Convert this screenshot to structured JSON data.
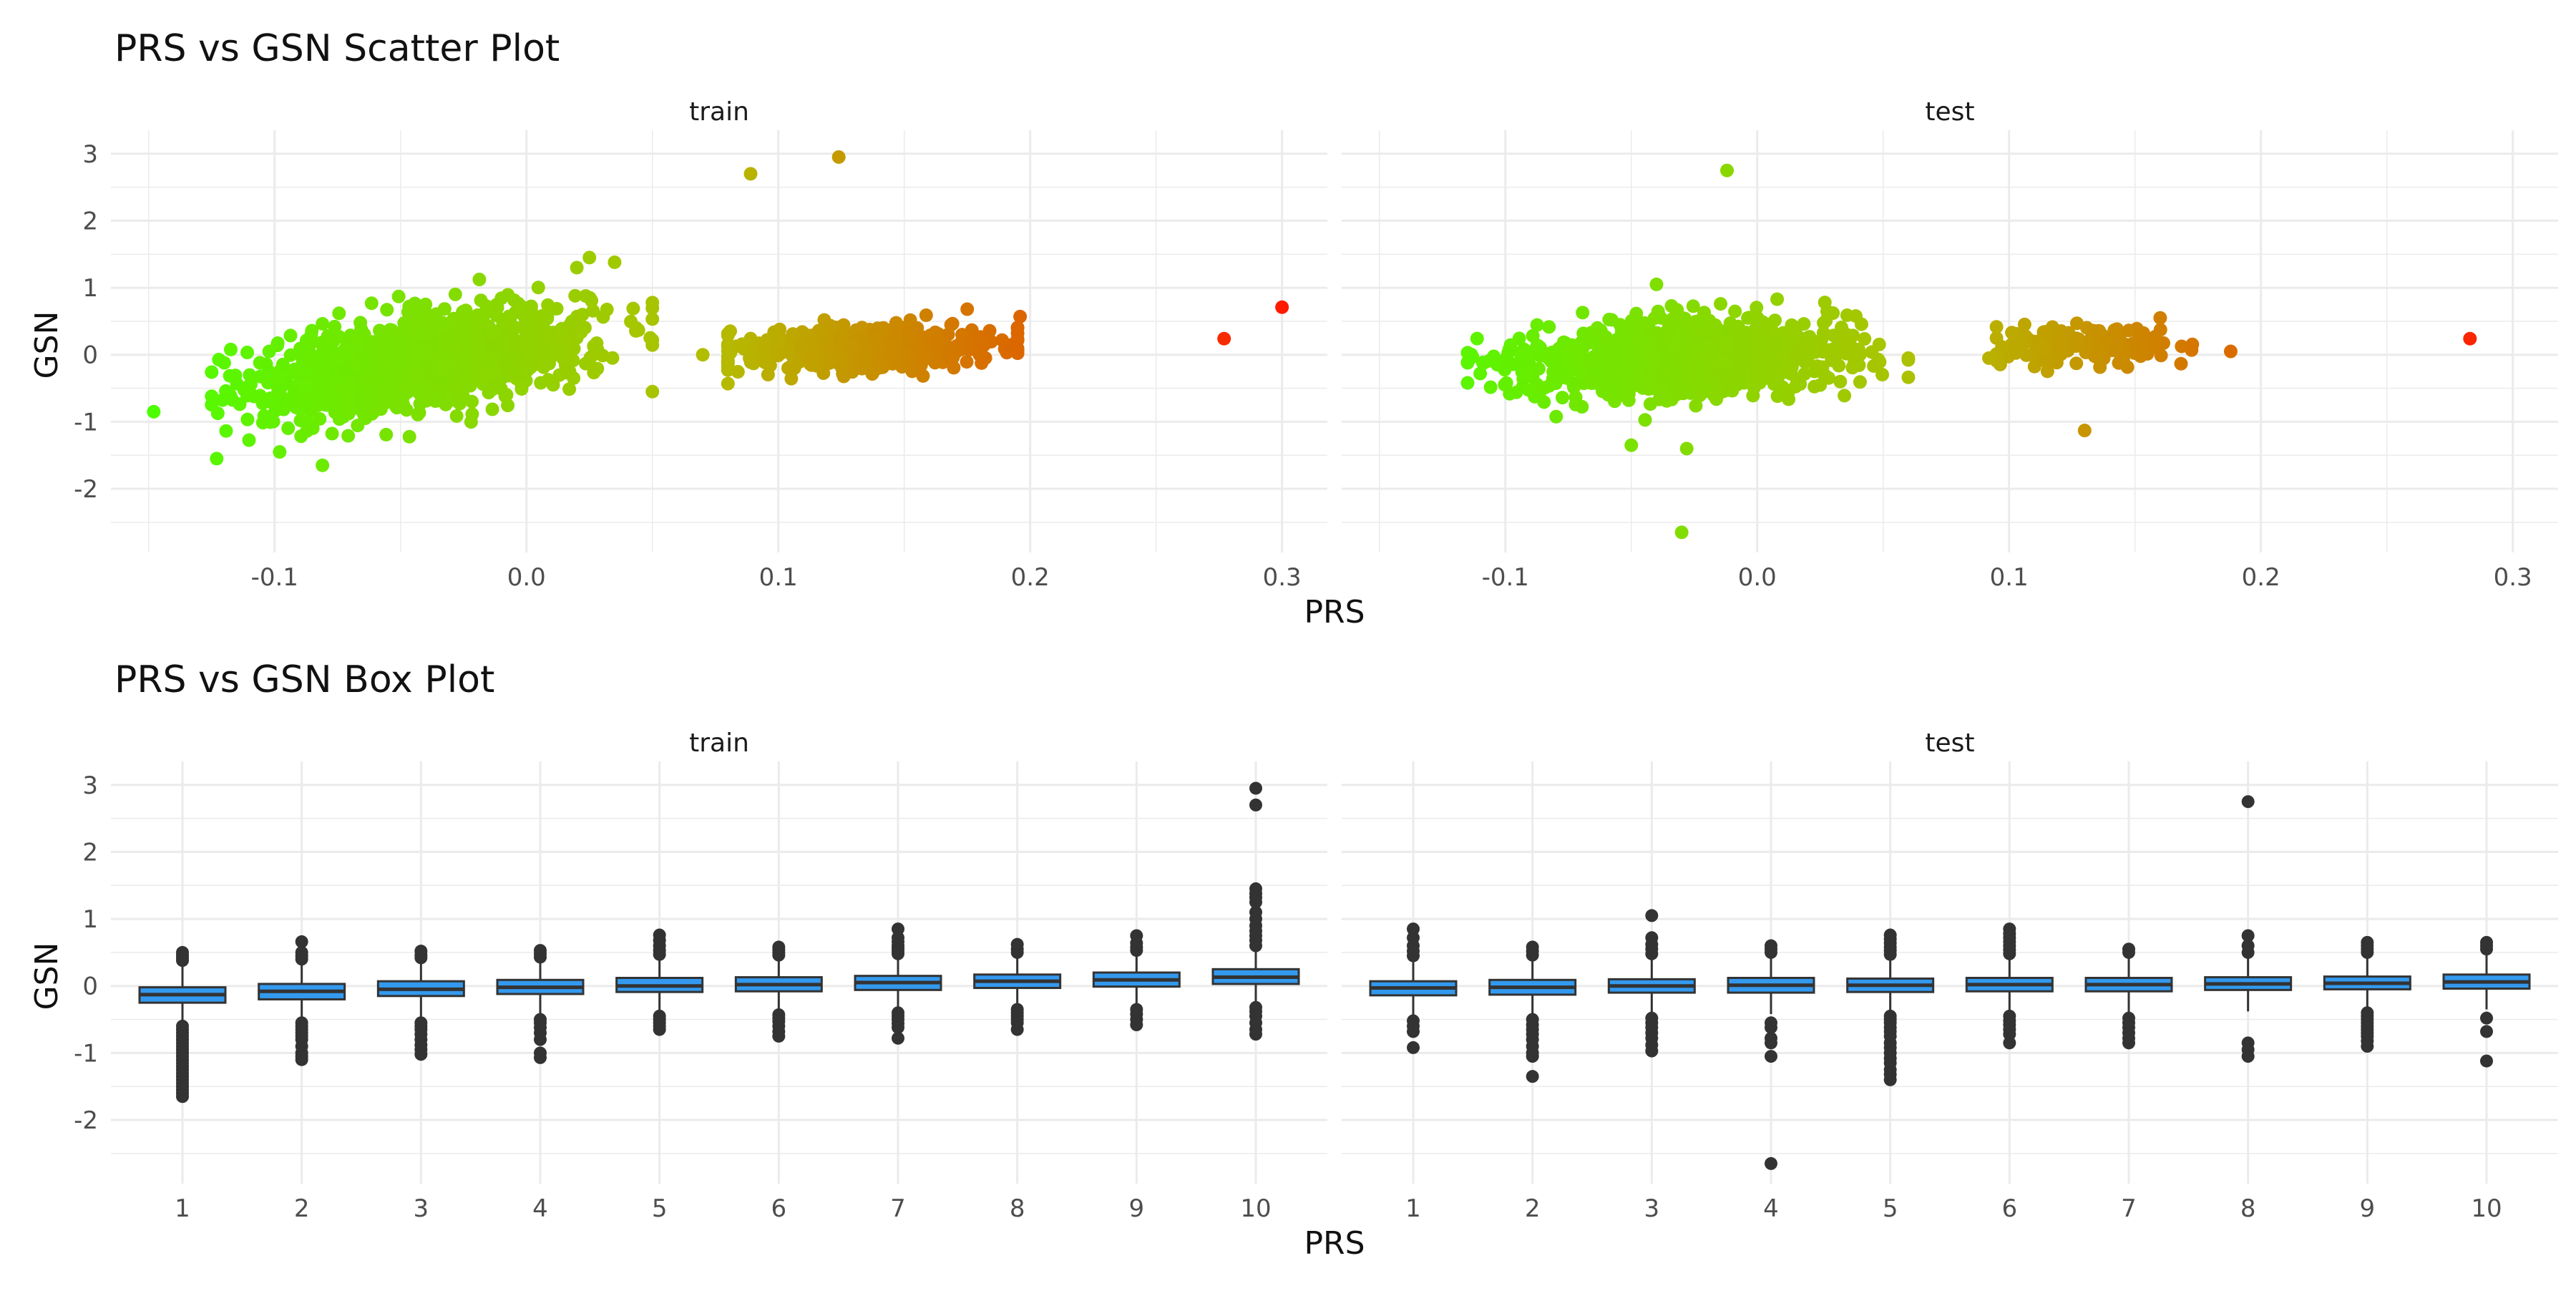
{
  "chart_data": [
    {
      "type": "scatter",
      "title": "PRS vs GSN Scatter Plot",
      "xlabel": "PRS",
      "ylabel": "GSN",
      "xlim": [
        -0.165,
        0.318
      ],
      "ylim": [
        -2.95,
        3.35
      ],
      "x_ticks": [
        -0.1,
        0.0,
        0.1,
        0.2,
        0.3
      ],
      "x_tick_labels": [
        "-0.1",
        "0.0",
        "0.1",
        "0.2",
        "0.3"
      ],
      "y_ticks": [
        -2,
        -1,
        0,
        1,
        2,
        3
      ],
      "y_tick_labels": [
        "-2",
        "-1",
        "0",
        "1",
        "2",
        "3"
      ],
      "grid": true,
      "color_scale": {
        "low": "#4cff00",
        "mid": "#b3bd00",
        "high": "#ff1a00",
        "range": [
          -0.15,
          0.3
        ]
      },
      "panels": [
        {
          "name": "train",
          "clusters": [
            {
              "n": 1400,
              "cx": -0.04,
              "sx": 0.032,
              "cy": -0.1,
              "sy": 0.33,
              "slope": 6.0,
              "x_range": [
                -0.125,
                0.05
              ]
            },
            {
              "n": 500,
              "cx": 0.135,
              "sx": 0.028,
              "cy": 0.1,
              "sy": 0.17,
              "slope": 1.0,
              "x_range": [
                0.08,
                0.195
              ]
            }
          ],
          "points": [
            [
              -0.148,
              -0.85
            ],
            [
              -0.123,
              -1.55
            ],
            [
              -0.081,
              -1.65
            ],
            [
              -0.12,
              -0.12
            ],
            [
              -0.098,
              -1.45
            ],
            [
              0.025,
              1.45
            ],
            [
              0.035,
              1.38
            ],
            [
              0.02,
              1.3
            ],
            [
              0.05,
              -0.55
            ],
            [
              0.07,
              0.0
            ],
            [
              0.089,
              2.7
            ],
            [
              0.124,
              2.95
            ],
            [
              0.196,
              0.57
            ],
            [
              0.175,
              0.68
            ],
            [
              0.277,
              0.24
            ],
            [
              0.3,
              0.71
            ]
          ]
        },
        {
          "name": "test",
          "clusters": [
            {
              "n": 1200,
              "cx": -0.03,
              "sx": 0.03,
              "cy": -0.05,
              "sy": 0.28,
              "slope": 1.0,
              "x_range": [
                -0.115,
                0.06
              ]
            },
            {
              "n": 150,
              "cx": 0.13,
              "sx": 0.018,
              "cy": 0.15,
              "sy": 0.14,
              "slope": 0.5,
              "x_range": [
                0.095,
                0.175
              ]
            }
          ],
          "points": [
            [
              -0.012,
              2.75
            ],
            [
              -0.03,
              -2.65
            ],
            [
              -0.05,
              -1.35
            ],
            [
              -0.028,
              -1.4
            ],
            [
              -0.04,
              1.05
            ],
            [
              -0.115,
              -0.12
            ],
            [
              -0.11,
              -0.28
            ],
            [
              0.06,
              -0.05
            ],
            [
              0.092,
              -0.05
            ],
            [
              0.13,
              -1.13
            ],
            [
              0.16,
              0.55
            ],
            [
              0.188,
              0.05
            ],
            [
              0.283,
              0.24
            ]
          ]
        }
      ]
    },
    {
      "type": "box",
      "title": "PRS vs GSN Box Plot",
      "xlabel": "PRS",
      "ylabel": "GSN",
      "categories": [
        "1",
        "2",
        "3",
        "4",
        "5",
        "6",
        "7",
        "8",
        "9",
        "10"
      ],
      "ylim": [
        -2.95,
        3.35
      ],
      "y_ticks": [
        -2,
        -1,
        0,
        1,
        2,
        3
      ],
      "y_tick_labels": [
        "-2",
        "-1",
        "0",
        "1",
        "2",
        "3"
      ],
      "grid": true,
      "box_fill": "#3399ee",
      "box_stroke": "#333333",
      "panels": [
        {
          "name": "train",
          "boxes": [
            {
              "q1": -0.25,
              "median": -0.13,
              "q3": -0.02,
              "whisker_low": -0.55,
              "whisker_high": 0.3,
              "outliers": [
                0.38,
                0.42,
                0.46,
                0.5,
                -0.6,
                -0.65,
                -0.7,
                -0.75,
                -0.8,
                -0.85,
                -0.9,
                -0.95,
                -1.0,
                -1.05,
                -1.1,
                -1.15,
                -1.2,
                -1.25,
                -1.3,
                -1.35,
                -1.4,
                -1.45,
                -1.5,
                -1.55,
                -1.6,
                -1.65
              ]
            },
            {
              "q1": -0.2,
              "median": -0.08,
              "q3": 0.03,
              "whisker_low": -0.5,
              "whisker_high": 0.33,
              "outliers": [
                0.4,
                0.45,
                0.5,
                0.66,
                -0.55,
                -0.6,
                -0.65,
                -0.7,
                -0.75,
                -0.8,
                -0.9,
                -1.0,
                -1.05,
                -1.1
              ]
            },
            {
              "q1": -0.15,
              "median": -0.05,
              "q3": 0.07,
              "whisker_low": -0.48,
              "whisker_high": 0.38,
              "outliers": [
                0.42,
                0.46,
                0.52,
                -0.55,
                -0.6,
                -0.65,
                -0.72,
                -0.8,
                -0.88,
                -0.95,
                -1.02
              ]
            },
            {
              "q1": -0.12,
              "median": -0.02,
              "q3": 0.09,
              "whisker_low": -0.45,
              "whisker_high": 0.4,
              "outliers": [
                0.43,
                0.48,
                0.53,
                -0.5,
                -0.55,
                -0.62,
                -0.7,
                -0.8,
                -1.0,
                -1.07
              ]
            },
            {
              "q1": -0.09,
              "median": 0.0,
              "q3": 0.12,
              "whisker_low": -0.4,
              "whisker_high": 0.42,
              "outliers": [
                0.47,
                0.53,
                0.6,
                0.68,
                0.76,
                -0.45,
                -0.5,
                -0.55,
                -0.6,
                -0.65
              ]
            },
            {
              "q1": -0.08,
              "median": 0.02,
              "q3": 0.13,
              "whisker_low": -0.4,
              "whisker_high": 0.43,
              "outliers": [
                0.46,
                0.5,
                0.54,
                0.58,
                -0.43,
                -0.48,
                -0.53,
                -0.6,
                -0.68,
                -0.75
              ]
            },
            {
              "q1": -0.06,
              "median": 0.05,
              "q3": 0.15,
              "whisker_low": -0.38,
              "whisker_high": 0.45,
              "outliers": [
                0.48,
                0.52,
                0.56,
                0.6,
                0.66,
                0.72,
                0.85,
                -0.4,
                -0.45,
                -0.5,
                -0.56,
                -0.62,
                -0.78
              ]
            },
            {
              "q1": -0.03,
              "median": 0.07,
              "q3": 0.17,
              "whisker_low": -0.33,
              "whisker_high": 0.46,
              "outliers": [
                0.5,
                0.55,
                0.62,
                -0.35,
                -0.4,
                -0.45,
                -0.5,
                -0.55,
                -0.65
              ]
            },
            {
              "q1": -0.01,
              "median": 0.09,
              "q3": 0.2,
              "whisker_low": -0.3,
              "whisker_high": 0.48,
              "outliers": [
                0.53,
                0.58,
                0.64,
                0.75,
                -0.35,
                -0.42,
                -0.5,
                -0.58
              ]
            },
            {
              "q1": 0.03,
              "median": 0.13,
              "q3": 0.25,
              "whisker_low": -0.28,
              "whisker_high": 0.55,
              "outliers": [
                0.6,
                0.68,
                0.75,
                0.82,
                0.9,
                1.0,
                1.1,
                1.25,
                1.32,
                1.38,
                1.45,
                2.7,
                2.95,
                -0.32,
                -0.38,
                -0.45,
                -0.55,
                -0.65,
                -0.72
              ]
            }
          ]
        },
        {
          "name": "test",
          "boxes": [
            {
              "q1": -0.14,
              "median": -0.03,
              "q3": 0.07,
              "whisker_low": -0.45,
              "whisker_high": 0.38,
              "outliers": [
                0.45,
                0.52,
                0.6,
                0.72,
                0.85,
                -0.52,
                -0.6,
                -0.68,
                -0.92
              ]
            },
            {
              "q1": -0.13,
              "median": -0.02,
              "q3": 0.09,
              "whisker_low": -0.44,
              "whisker_high": 0.4,
              "outliers": [
                0.46,
                0.52,
                0.58,
                -0.5,
                -0.58,
                -0.65,
                -0.72,
                -0.8,
                -0.9,
                -1.0,
                -1.05,
                -1.35
              ]
            },
            {
              "q1": -0.1,
              "median": 0.0,
              "q3": 0.1,
              "whisker_low": -0.42,
              "whisker_high": 0.42,
              "outliers": [
                0.48,
                0.55,
                0.62,
                0.72,
                1.05,
                -0.48,
                -0.55,
                -0.62,
                -0.7,
                -0.78,
                -0.88,
                -0.97
              ]
            },
            {
              "q1": -0.1,
              "median": 0.01,
              "q3": 0.12,
              "whisker_low": -0.42,
              "whisker_high": 0.43,
              "outliers": [
                0.5,
                0.55,
                0.6,
                -0.55,
                -0.62,
                -0.78,
                -0.85,
                -1.05,
                -2.65
              ]
            },
            {
              "q1": -0.09,
              "median": 0.01,
              "q3": 0.11,
              "whisker_low": -0.4,
              "whisker_high": 0.42,
              "outliers": [
                0.47,
                0.53,
                0.58,
                0.64,
                0.7,
                0.76,
                -0.45,
                -0.5,
                -0.55,
                -0.62,
                -0.68,
                -0.75,
                -0.85,
                -0.92,
                -1.0,
                -1.08,
                -1.15,
                -1.25,
                -1.32,
                -1.4
              ]
            },
            {
              "q1": -0.08,
              "median": 0.02,
              "q3": 0.12,
              "whisker_low": -0.4,
              "whisker_high": 0.42,
              "outliers": [
                0.48,
                0.54,
                0.6,
                0.66,
                0.72,
                0.78,
                0.85,
                -0.45,
                -0.52,
                -0.58,
                -0.65,
                -0.72,
                -0.85
              ]
            },
            {
              "q1": -0.08,
              "median": 0.02,
              "q3": 0.12,
              "whisker_low": -0.4,
              "whisker_high": 0.42,
              "outliers": [
                0.5,
                0.55,
                -0.48,
                -0.55,
                -0.62,
                -0.7,
                -0.78,
                -0.85
              ]
            },
            {
              "q1": -0.06,
              "median": 0.03,
              "q3": 0.13,
              "whisker_low": -0.38,
              "whisker_high": 0.43,
              "outliers": [
                0.5,
                0.6,
                0.75,
                2.75,
                -0.85,
                -0.95,
                -1.05
              ]
            },
            {
              "q1": -0.05,
              "median": 0.04,
              "q3": 0.14,
              "whisker_low": -0.37,
              "whisker_high": 0.44,
              "outliers": [
                0.5,
                0.55,
                0.6,
                0.65,
                -0.4,
                -0.45,
                -0.5,
                -0.55,
                -0.6,
                -0.65,
                -0.7,
                -0.75,
                -0.82,
                -0.9
              ]
            },
            {
              "q1": -0.04,
              "median": 0.06,
              "q3": 0.17,
              "whisker_low": -0.35,
              "whisker_high": 0.47,
              "outliers": [
                0.55,
                0.6,
                0.65,
                -0.48,
                -0.68,
                -1.12
              ]
            }
          ]
        }
      ]
    }
  ]
}
